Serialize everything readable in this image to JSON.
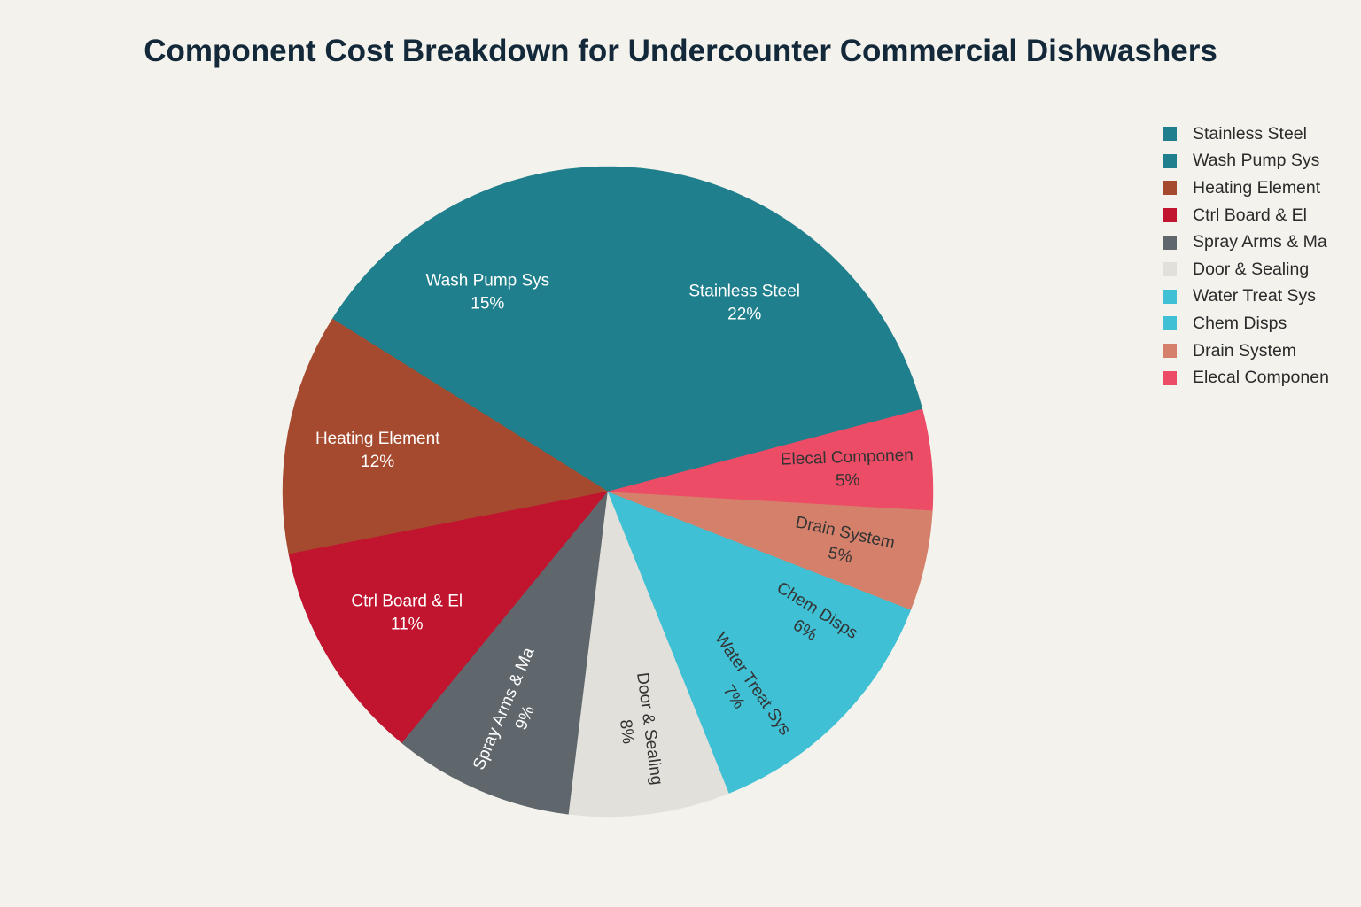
{
  "chart_data": {
    "type": "pie",
    "title": "Component Cost Breakdown for Undercounter Commercial Dishwashers",
    "slices": [
      {
        "label": "Stainless Steel",
        "value": 22,
        "display": "22%",
        "color": "#1f7f8c",
        "label_color": "#ffffff"
      },
      {
        "label": "Wash Pump Sys",
        "value": 15,
        "display": "15%",
        "color": "#1f7f8c",
        "label_color": "#ffffff"
      },
      {
        "label": "Heating Element",
        "value": 12,
        "display": "12%",
        "color": "#a54a2e",
        "label_color": "#ffffff"
      },
      {
        "label": "Ctrl Board & El",
        "value": 11,
        "display": "11%",
        "color": "#c0142f",
        "label_color": "#ffffff"
      },
      {
        "label": "Spray Arms & Ma",
        "value": 9,
        "display": "9%",
        "color": "#5f676d",
        "label_color": "#ffffff"
      },
      {
        "label": "Door & Sealing",
        "value": 8,
        "display": "8%",
        "color": "#e2e0da",
        "label_color": "#333333"
      },
      {
        "label": "Water Treat Sys",
        "value": 7,
        "display": "7%",
        "color": "#3fc0d4",
        "label_color": "#333333"
      },
      {
        "label": "Chem Disps",
        "value": 6,
        "display": "6%",
        "color": "#3fc0d4",
        "label_color": "#333333"
      },
      {
        "label": "Drain System",
        "value": 5,
        "display": "5%",
        "color": "#d5806a",
        "label_color": "#333333"
      },
      {
        "label": "Elecal Componen",
        "value": 5,
        "display": "5%",
        "color": "#ec4c66",
        "label_color": "#333333"
      }
    ],
    "legend_position": "top-right"
  }
}
